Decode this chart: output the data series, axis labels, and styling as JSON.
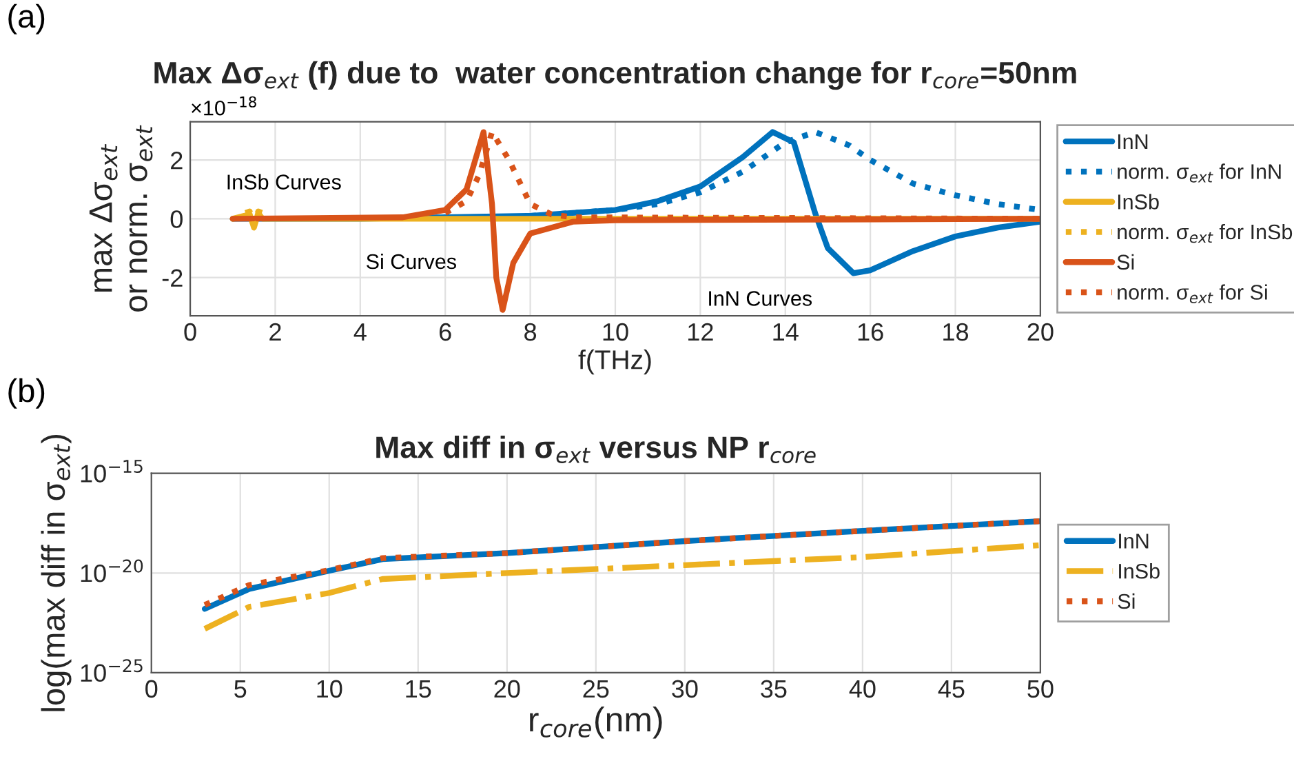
{
  "chart_data": [
    {
      "type": "line",
      "title": "Max Δσ$_{ext}$ (f) due to  water concentration change for r$_{core}$=50nm",
      "xlabel": "f(THz)",
      "ylabel": "max Δσ$_{ext}$\nor norm. σ$_{ext}$",
      "annotations": [
        "(a)",
        "×10$^{−18}$",
        "InSb Curves",
        "Si Curves",
        "InN Curves"
      ],
      "xlim": [
        0,
        20
      ],
      "xticks": [
        0,
        2,
        4,
        6,
        8,
        10,
        12,
        14,
        16,
        18,
        20
      ],
      "ylim": [
        -3.3,
        3.3
      ],
      "yticks": [
        -2,
        0,
        2
      ],
      "grid": true,
      "legend": "right",
      "series": [
        {
          "name": "InN",
          "color": "#0072bd",
          "line_style": "solid",
          "x": [
            1,
            4,
            6,
            8,
            10,
            11,
            12,
            13,
            13.7,
            14.2,
            14.7,
            15,
            15.6,
            16,
            17,
            18,
            19,
            20
          ],
          "values": [
            0,
            0,
            0.05,
            0.1,
            0.3,
            0.6,
            1.1,
            2.1,
            2.95,
            2.6,
            0.2,
            -1.0,
            -1.85,
            -1.75,
            -1.1,
            -0.6,
            -0.3,
            -0.1
          ]
        },
        {
          "name": "norm. σ$_{ext}$ for InN",
          "color": "#0072bd",
          "line_style": "dotted",
          "x": [
            8,
            10,
            11,
            12,
            13,
            14,
            14.7,
            15.5,
            16,
            17,
            18,
            19,
            20
          ],
          "values": [
            0.1,
            0.3,
            0.5,
            0.9,
            1.6,
            2.6,
            2.95,
            2.5,
            2.0,
            1.2,
            0.8,
            0.5,
            0.3
          ]
        },
        {
          "name": "InSb",
          "color": "#edb120",
          "line_style": "solid",
          "x": [
            1,
            1.4,
            1.5,
            1.6,
            1.7,
            20
          ],
          "values": [
            0,
            0.15,
            -0.3,
            0.2,
            0,
            0
          ]
        },
        {
          "name": "norm. σ$_{ext}$ for InSb",
          "color": "#edb120",
          "line_style": "dotted",
          "x": [
            1.3,
            1.4,
            1.5,
            1.6,
            1.7
          ],
          "values": [
            0.2,
            0.25,
            -0.2,
            0.25,
            0.2
          ]
        },
        {
          "name": "Si",
          "color": "#d95319",
          "line_style": "solid",
          "x": [
            1,
            5,
            6,
            6.5,
            6.9,
            7.1,
            7.2,
            7.35,
            7.6,
            8,
            9,
            10,
            20
          ],
          "values": [
            0,
            0.05,
            0.3,
            1.0,
            2.95,
            0.5,
            -2.0,
            -3.1,
            -1.5,
            -0.5,
            -0.1,
            -0.05,
            0
          ]
        },
        {
          "name": "norm. σ$_{ext}$ for Si",
          "color": "#d95319",
          "line_style": "dotted",
          "x": [
            6,
            6.5,
            6.8,
            7.1,
            7.5,
            8,
            8.5,
            9,
            20
          ],
          "values": [
            0.2,
            0.6,
            1.5,
            2.95,
            2.0,
            0.5,
            0.15,
            0.05,
            0
          ]
        }
      ]
    },
    {
      "type": "line",
      "title": "Max diff in σ$_{ext}$ versus NP r$_{core}$",
      "xlabel": "r$_{core}$(nm)",
      "ylabel": "log(max diff in σ$_{ext}$)",
      "annotations": [
        "(b)"
      ],
      "log": "y",
      "xlim": [
        0,
        50
      ],
      "xticks": [
        0,
        5,
        10,
        15,
        20,
        25,
        30,
        35,
        40,
        45,
        50
      ],
      "ylim": [
        1e-25,
        1e-15
      ],
      "yticks": [
        {
          "value": 1e-25,
          "label": "10$^{−25}$"
        },
        {
          "value": 1e-20,
          "label": "10$^{−20}$"
        },
        {
          "value": 1e-15,
          "label": "10$^{−15}$"
        }
      ],
      "grid": true,
      "legend": "right",
      "series": [
        {
          "name": "InN",
          "color": "#0072bd",
          "line_style": "solid",
          "x": [
            3,
            5.5,
            10,
            13,
            20,
            30,
            40,
            50
          ],
          "values": [
            1.6e-22,
            1.6e-21,
            1.3e-20,
            5e-20,
            1e-19,
            4e-19,
            1.3e-18,
            4e-18
          ]
        },
        {
          "name": "InSb",
          "color": "#edb120",
          "line_style": "dashdot",
          "x": [
            3,
            5.5,
            10,
            13,
            20,
            30,
            40,
            50
          ],
          "values": [
            1.6e-23,
            2e-22,
            1e-21,
            5e-21,
            1e-20,
            2.5e-20,
            6.3e-20,
            2.5e-19
          ]
        },
        {
          "name": "Si",
          "color": "#d95319",
          "line_style": "dotted",
          "x": [
            3,
            5.5,
            10,
            13,
            20,
            30,
            40,
            50
          ],
          "values": [
            2.5e-22,
            2.5e-21,
            1.4e-20,
            5.6e-20,
            1e-19,
            4e-19,
            1.3e-18,
            4e-18
          ]
        }
      ]
    }
  ]
}
